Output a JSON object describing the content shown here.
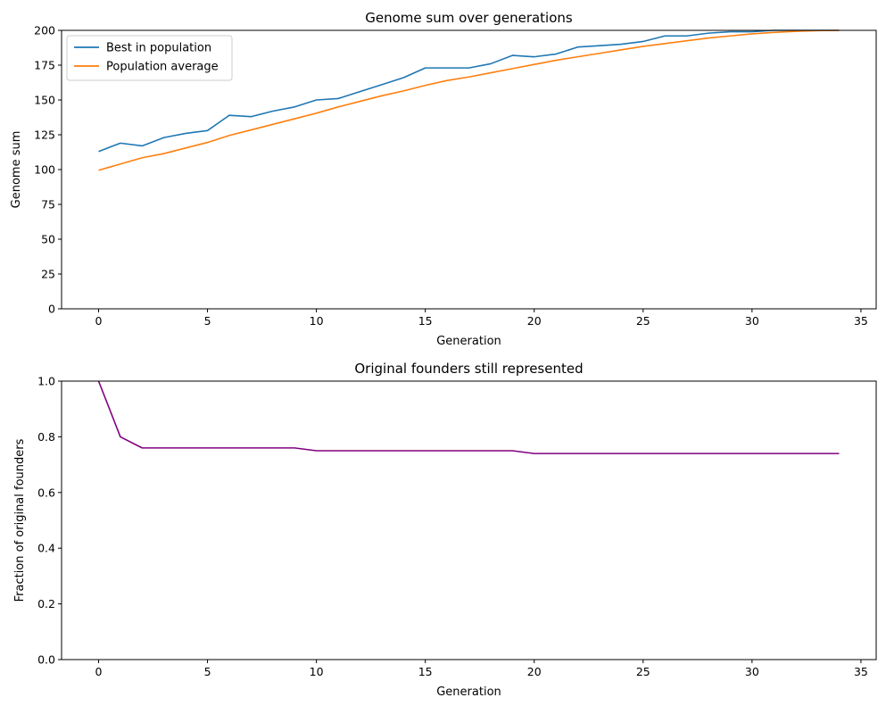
{
  "chart_data": [
    {
      "type": "line",
      "title": "Genome sum over generations",
      "xlabel": "Generation",
      "ylabel": "Genome sum",
      "xlim": [
        -1.7,
        35.7
      ],
      "ylim": [
        0,
        200
      ],
      "xticks": [
        0,
        5,
        10,
        15,
        20,
        25,
        30,
        35
      ],
      "yticks": [
        0,
        25,
        50,
        75,
        100,
        125,
        150,
        175,
        200
      ],
      "grid": false,
      "legend": "top-left",
      "x": [
        0,
        1,
        2,
        3,
        4,
        5,
        6,
        7,
        8,
        9,
        10,
        11,
        12,
        13,
        14,
        15,
        16,
        17,
        18,
        19,
        20,
        21,
        22,
        23,
        24,
        25,
        26,
        27,
        28,
        29,
        30,
        31,
        32,
        33,
        34
      ],
      "series": [
        {
          "name": "Best in population",
          "color": "#1f77b4",
          "values": [
            113,
            119,
            117,
            123,
            126,
            128,
            139,
            138,
            142,
            145,
            150,
            151,
            156,
            161,
            166,
            173,
            173,
            173,
            176,
            182,
            181,
            183,
            188,
            189,
            190,
            192,
            196,
            196,
            198,
            199,
            199,
            200,
            200,
            200,
            200
          ]
        },
        {
          "name": "Population average",
          "color": "#ff7f0e",
          "values": [
            99.5,
            104,
            108.5,
            111.5,
            115.5,
            119.5,
            124.5,
            128.5,
            132.5,
            136.5,
            140.5,
            145,
            149,
            153,
            156.5,
            160.5,
            164,
            166.5,
            169.5,
            172.5,
            175.5,
            178.5,
            181,
            183.5,
            186,
            188.5,
            190.5,
            192.5,
            194.5,
            196,
            197.5,
            198.5,
            199.3,
            199.8,
            200
          ]
        }
      ]
    },
    {
      "type": "line",
      "title": "Original founders still represented",
      "xlabel": "Generation",
      "ylabel": "Fraction of original founders",
      "xlim": [
        -1.7,
        35.7
      ],
      "ylim": [
        0.0,
        1.0
      ],
      "xticks": [
        0,
        5,
        10,
        15,
        20,
        25,
        30,
        35
      ],
      "yticks": [
        "0.0",
        "0.2",
        "0.4",
        "0.6",
        "0.8",
        "1.0"
      ],
      "grid": false,
      "x": [
        0,
        1,
        2,
        3,
        4,
        5,
        6,
        7,
        8,
        9,
        10,
        11,
        12,
        13,
        14,
        15,
        16,
        17,
        18,
        19,
        20,
        21,
        22,
        23,
        24,
        25,
        26,
        27,
        28,
        29,
        30,
        31,
        32,
        33,
        34
      ],
      "series": [
        {
          "color": "#800080",
          "values": [
            1.0,
            0.8,
            0.76,
            0.76,
            0.76,
            0.76,
            0.76,
            0.76,
            0.76,
            0.76,
            0.75,
            0.75,
            0.75,
            0.75,
            0.75,
            0.75,
            0.75,
            0.75,
            0.75,
            0.75,
            0.74,
            0.74,
            0.74,
            0.74,
            0.74,
            0.74,
            0.74,
            0.74,
            0.74,
            0.74,
            0.74,
            0.74,
            0.74,
            0.74,
            0.74
          ]
        }
      ]
    }
  ]
}
